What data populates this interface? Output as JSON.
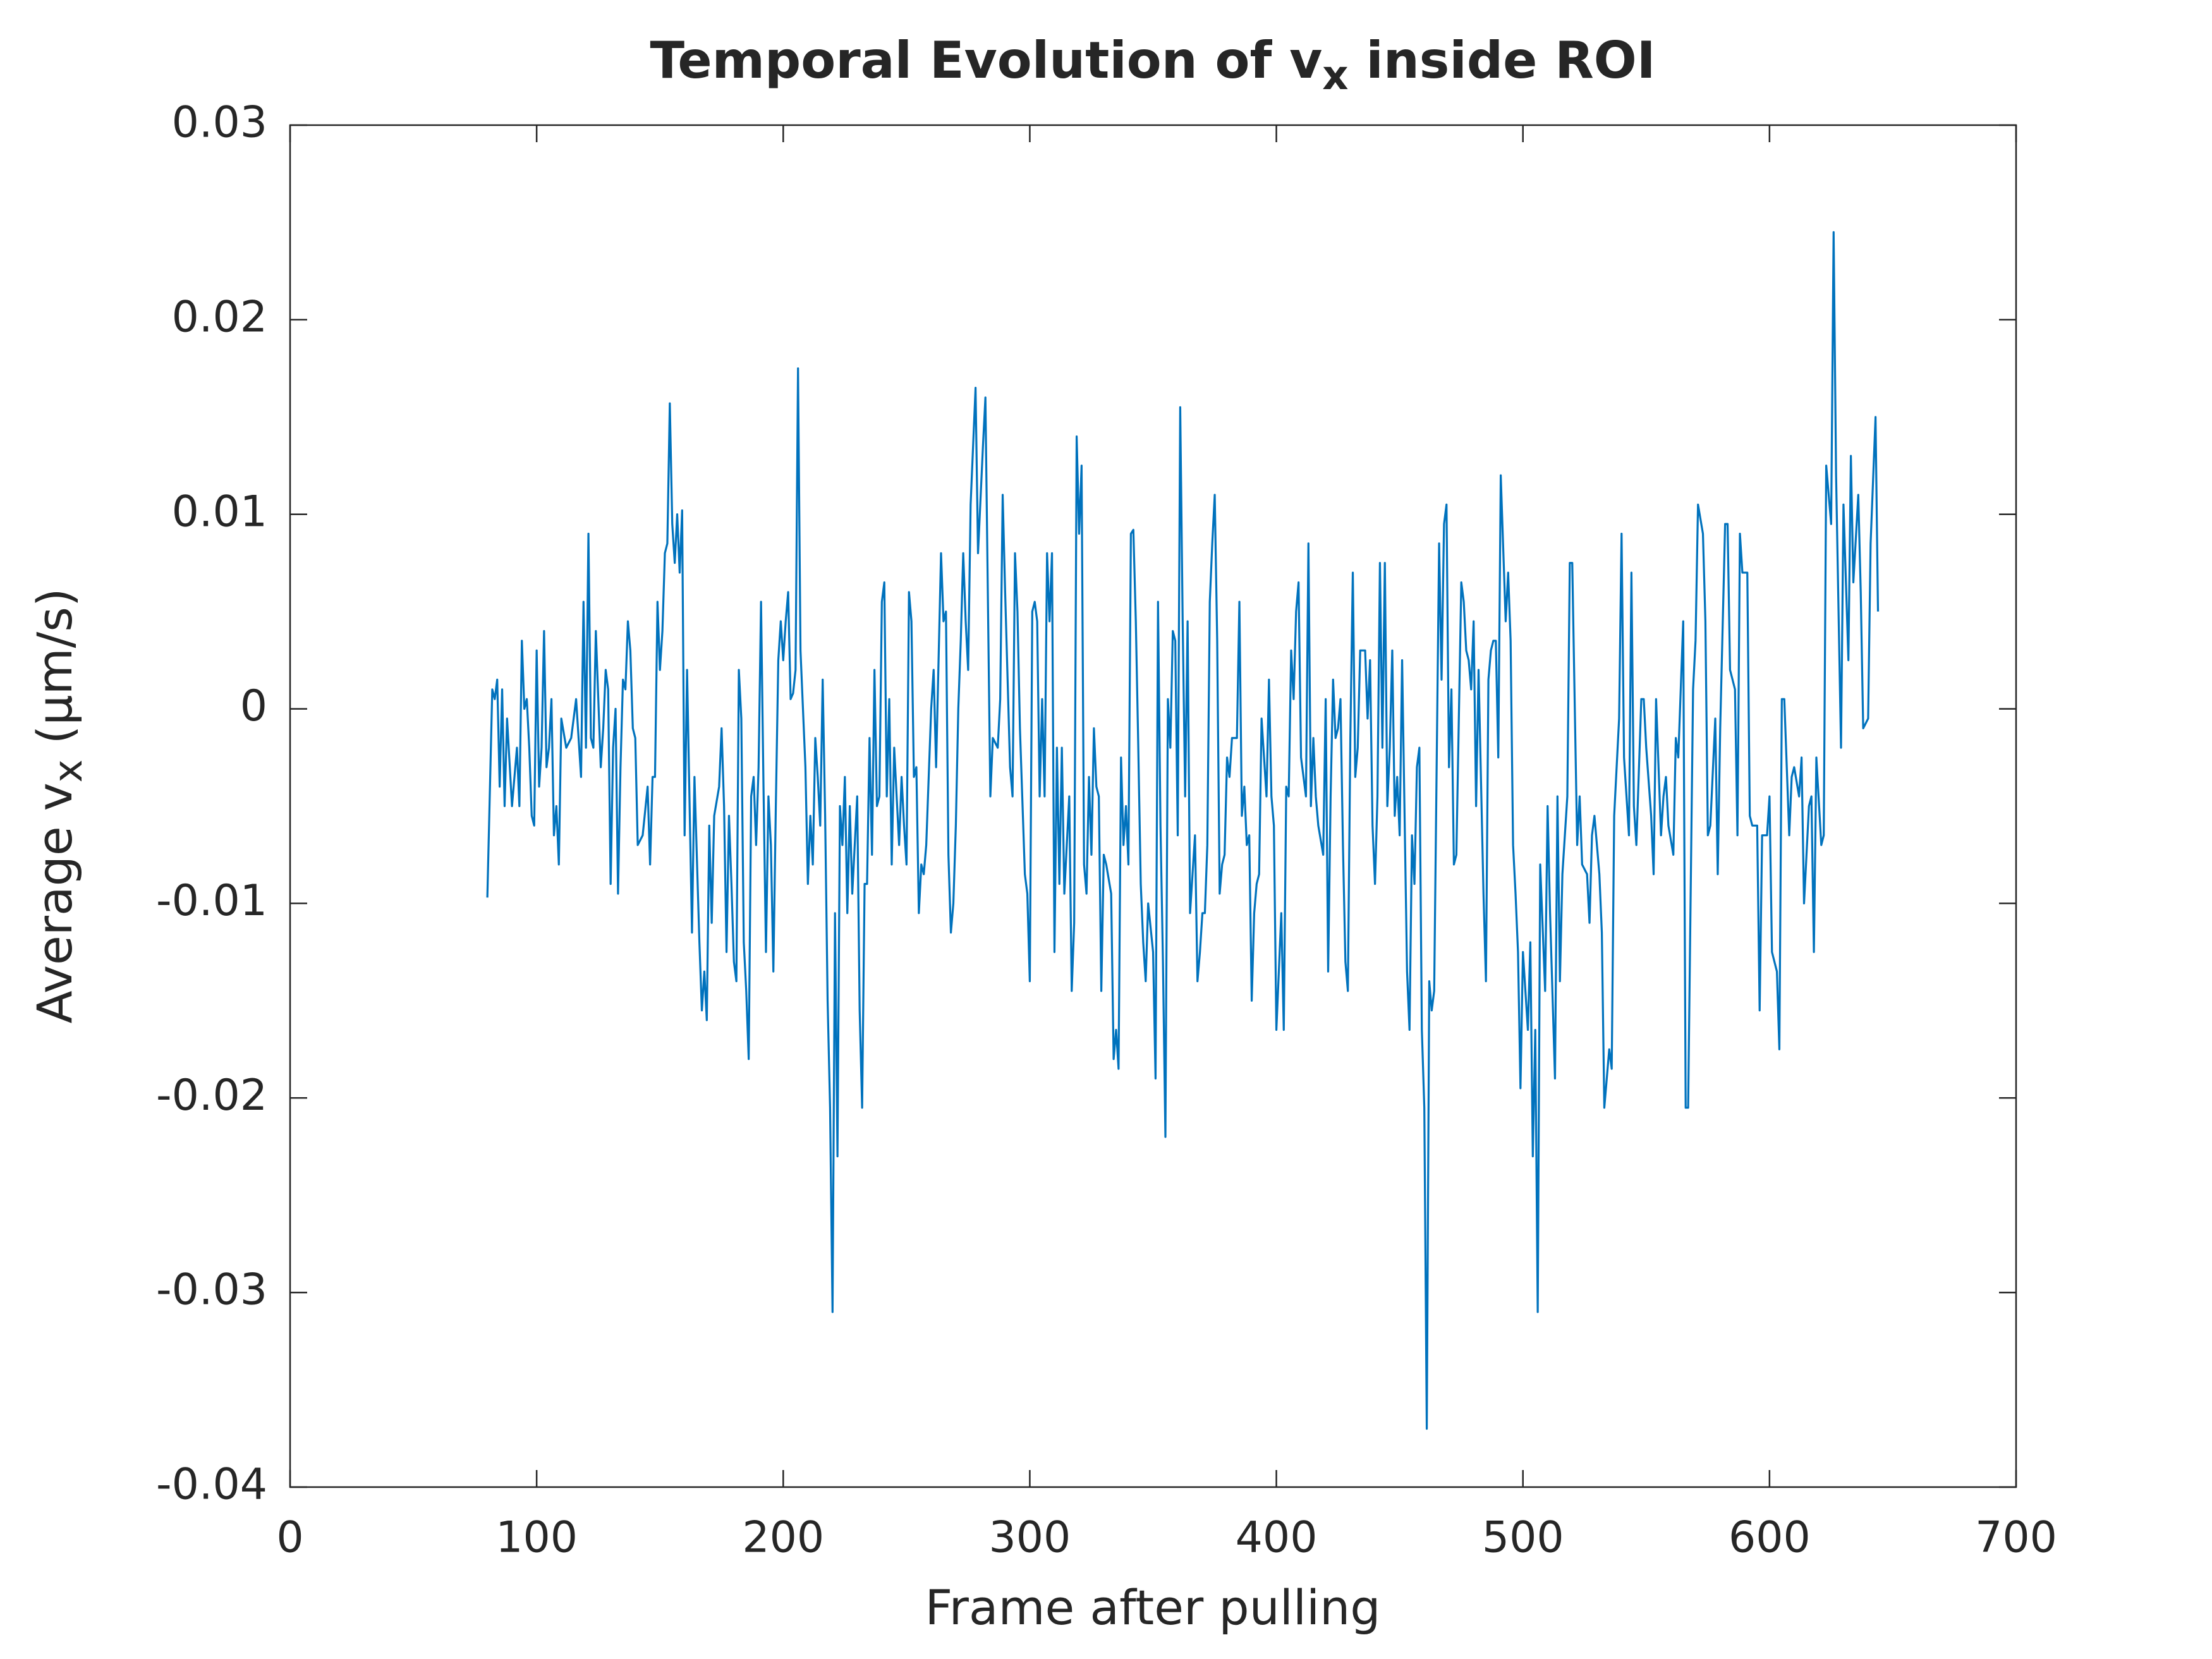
{
  "chart_data": {
    "type": "line",
    "title_parts": [
      "Temporal Evolution of v",
      "x",
      " inside ROI"
    ],
    "xlabel": "Frame after pulling",
    "ylabel_parts": [
      "Average v",
      "x",
      " (μm/s)"
    ],
    "xlim": [
      0,
      700
    ],
    "xticks": [
      0,
      100,
      200,
      300,
      400,
      500,
      600,
      700
    ],
    "ylim": [
      -0.04,
      0.03
    ],
    "yticks": [
      -0.04,
      -0.03,
      -0.02,
      -0.01,
      0,
      0.01,
      0.02,
      0.03
    ],
    "grid": false,
    "series": [
      {
        "color": "#0072bd",
        "x": [
          80,
          82,
          83,
          84,
          85,
          86,
          87,
          88,
          90,
          92,
          93,
          94,
          95,
          96,
          97,
          98,
          99,
          100,
          101,
          102,
          103,
          104,
          105,
          106,
          107,
          108,
          109,
          110,
          112,
          114,
          116,
          118,
          119,
          120,
          121,
          122,
          123,
          124,
          126,
          127,
          128,
          129,
          130,
          131,
          132,
          133,
          134,
          135,
          136,
          137,
          138,
          139,
          140,
          141,
          143,
          145,
          146,
          147,
          148,
          149,
          150,
          151,
          152,
          153,
          154,
          155,
          156,
          157,
          158,
          159,
          160,
          161,
          163,
          164,
          166,
          167,
          168,
          169,
          170,
          171,
          172,
          174,
          175,
          176,
          177,
          178,
          179,
          180,
          181,
          182,
          183,
          184,
          185,
          186,
          187,
          188,
          189,
          190,
          191,
          192,
          193,
          194,
          195,
          196,
          197,
          198,
          199,
          200,
          201,
          202,
          203,
          204,
          205,
          206,
          207,
          208,
          209,
          210,
          211,
          212,
          213,
          214,
          215,
          216,
          217,
          218,
          219,
          220,
          221,
          222,
          223,
          224,
          225,
          226,
          227,
          228,
          230,
          231,
          232,
          233,
          234,
          235,
          236,
          237,
          238,
          239,
          240,
          241,
          242,
          243,
          244,
          245,
          247,
          248,
          249,
          250,
          251,
          252,
          253,
          254,
          255,
          256,
          257,
          258,
          259,
          260,
          261,
          262,
          264,
          265,
          266,
          267,
          268,
          269,
          270,
          271,
          272,
          273,
          274,
          275,
          276,
          278,
          279,
          281,
          282,
          284,
          285,
          287,
          288,
          289,
          290,
          291,
          292,
          293,
          294,
          295,
          296,
          298,
          299,
          300,
          301,
          302,
          303,
          304,
          305,
          306,
          307,
          308,
          309,
          310,
          311,
          312,
          313,
          314,
          316,
          317,
          318,
          319,
          320,
          321,
          322,
          323,
          324,
          325,
          326,
          327,
          328,
          329,
          330,
          331,
          333,
          334,
          335,
          336,
          337,
          338,
          339,
          340,
          341,
          342,
          343,
          344,
          345,
          346,
          347,
          348,
          350,
          351,
          352,
          353,
          354,
          355,
          356,
          357,
          358,
          359,
          360,
          361,
          362,
          363,
          364,
          365,
          367,
          368,
          369,
          370,
          371,
          372,
          373,
          374,
          375,
          376,
          377,
          378,
          379,
          380,
          381,
          382,
          384,
          385,
          386,
          387,
          388,
          389,
          390,
          391,
          392,
          393,
          394,
          395,
          396,
          397,
          398,
          399,
          400,
          402,
          403,
          404,
          405,
          406,
          407,
          408,
          409,
          410,
          411,
          412,
          413,
          414,
          415,
          416,
          417,
          419,
          420,
          421,
          422,
          423,
          424,
          425,
          426,
          427,
          428,
          429,
          430,
          431,
          432,
          433,
          434,
          436,
          437,
          438,
          439,
          440,
          441,
          442,
          443,
          444,
          445,
          446,
          447,
          448,
          449,
          450,
          451,
          453,
          454,
          455,
          456,
          457,
          458,
          459,
          460,
          461,
          462,
          463,
          464,
          466,
          467,
          468,
          469,
          470,
          471,
          472,
          473,
          475,
          476,
          477,
          478,
          479,
          480,
          481,
          482,
          484,
          485,
          486,
          487,
          488,
          489,
          490,
          491,
          493,
          494,
          495,
          496,
          497,
          498,
          499,
          500,
          502,
          503,
          504,
          505,
          506,
          507,
          509,
          510,
          511,
          513,
          514,
          515,
          516,
          518,
          519,
          520,
          522,
          523,
          524,
          526,
          527,
          528,
          529,
          531,
          532,
          533,
          535,
          536,
          537,
          539,
          540,
          541,
          543,
          544,
          545,
          546,
          548,
          549,
          550,
          552,
          553,
          554,
          556,
          557,
          558,
          559,
          561,
          562,
          563,
          565,
          566,
          567,
          569,
          570,
          571,
          573,
          574,
          575,
          576,
          578,
          579,
          580,
          582,
          583,
          584,
          586,
          587,
          588,
          589,
          591,
          592,
          593,
          595,
          596,
          597,
          599,
          600,
          601,
          603,
          604,
          605,
          606,
          608,
          609,
          610,
          612,
          613,
          614,
          616,
          617,
          618,
          619,
          621,
          622,
          623,
          625,
          626,
          627,
          629,
          630,
          632,
          633,
          634,
          636,
          637,
          638,
          640,
          641,
          643,
          644
        ],
        "values": [
          -0.0097,
          0.001,
          0.0005,
          0.0015,
          -0.004,
          0.001,
          -0.005,
          -0.0005,
          -0.005,
          -0.002,
          -0.005,
          0.0035,
          0,
          0.0005,
          -0.002,
          -0.0055,
          -0.006,
          0.003,
          -0.004,
          -0.002,
          0.004,
          -0.003,
          -0.002,
          0.0005,
          -0.0065,
          -0.005,
          -0.008,
          -0.0005,
          -0.002,
          -0.0015,
          0.0005,
          -0.0035,
          0.0055,
          -0.002,
          0.009,
          -0.0015,
          -0.002,
          0.004,
          -0.003,
          -0.001,
          0.002,
          0.001,
          -0.009,
          -0.002,
          0,
          -0.0095,
          -0.003,
          0.0015,
          0.001,
          0.0045,
          0.003,
          -0.001,
          -0.0015,
          -0.007,
          -0.0065,
          -0.004,
          -0.008,
          -0.0035,
          -0.0035,
          0.0055,
          0.002,
          0.004,
          0.008,
          0.0085,
          0.0157,
          0.0095,
          0.0075,
          0.01,
          0.007,
          0.0102,
          -0.0065,
          0.002,
          -0.0115,
          -0.0035,
          -0.012,
          -0.0155,
          -0.0135,
          -0.016,
          -0.006,
          -0.011,
          -0.0055,
          -0.004,
          -0.001,
          -0.005,
          -0.0125,
          -0.0055,
          -0.009,
          -0.013,
          -0.014,
          0.002,
          -0.0005,
          -0.012,
          -0.0145,
          -0.018,
          -0.0045,
          -0.0035,
          -0.007,
          -0.003,
          0.0055,
          -0.004,
          -0.0125,
          -0.0045,
          -0.007,
          -0.0135,
          -0.005,
          0.0025,
          0.0045,
          0.0025,
          0.0045,
          0.006,
          0.0005,
          0.0008,
          0.002,
          0.0175,
          0.003,
          0,
          -0.003,
          -0.009,
          -0.0055,
          -0.008,
          -0.0015,
          -0.0035,
          -0.006,
          0.0015,
          -0.0055,
          -0.015,
          -0.0205,
          -0.031,
          -0.0105,
          -0.023,
          -0.005,
          -0.007,
          -0.0035,
          -0.0105,
          -0.005,
          -0.0095,
          -0.0045,
          -0.0155,
          -0.0205,
          -0.009,
          -0.009,
          -0.0015,
          -0.0075,
          0.002,
          -0.005,
          -0.0045,
          0.0055,
          0.0065,
          -0.0045,
          0.0005,
          -0.008,
          -0.002,
          -0.007,
          -0.0035,
          -0.006,
          -0.008,
          0.006,
          0.0045,
          -0.0035,
          -0.003,
          -0.0105,
          -0.008,
          -0.0085,
          -0.007,
          -0.0035,
          0,
          0.002,
          -0.003,
          0.008,
          0.0045,
          0.005,
          -0.0075,
          -0.0115,
          -0.01,
          -0.006,
          0,
          0.0035,
          0.008,
          0.0045,
          0.002,
          0.0105,
          0.0165,
          0.008,
          0.0135,
          0.016,
          -0.0045,
          -0.0015,
          -0.002,
          0.0005,
          0.011,
          0.006,
          0.0015,
          -0.003,
          -0.0045,
          0.008,
          0.005,
          -0.001,
          -0.0085,
          -0.0095,
          -0.014,
          0.005,
          0.0055,
          0.0045,
          -0.0045,
          0.0005,
          -0.0045,
          0.008,
          0.0045,
          0.008,
          -0.0125,
          -0.002,
          -0.009,
          -0.002,
          -0.0095,
          -0.0045,
          -0.0145,
          -0.011,
          0.014,
          0.009,
          0.0125,
          -0.008,
          -0.0095,
          -0.0035,
          -0.0075,
          -0.001,
          -0.004,
          -0.0045,
          -0.0145,
          -0.0075,
          -0.008,
          -0.0095,
          -0.018,
          -0.0165,
          -0.0185,
          -0.0025,
          -0.007,
          -0.005,
          -0.008,
          0.009,
          0.0092,
          0.0045,
          -0.002,
          -0.009,
          -0.012,
          -0.014,
          -0.01,
          -0.0125,
          -0.019,
          0.0055,
          -0.006,
          -0.013,
          -0.022,
          0.0005,
          -0.002,
          0.004,
          0.0035,
          -0.0065,
          0.0155,
          0.0045,
          -0.0045,
          0.0045,
          -0.0105,
          -0.0065,
          -0.014,
          -0.0125,
          -0.0105,
          -0.0105,
          -0.007,
          0.0055,
          0.0085,
          0.011,
          0.0035,
          -0.0095,
          -0.008,
          -0.0075,
          -0.0025,
          -0.0035,
          -0.0015,
          -0.0015,
          0.0055,
          -0.0055,
          -0.004,
          -0.007,
          -0.0065,
          -0.015,
          -0.0105,
          -0.009,
          -0.0085,
          -0.0005,
          -0.0025,
          -0.0045,
          0.0015,
          -0.0045,
          -0.006,
          -0.0165,
          -0.0105,
          -0.0165,
          -0.004,
          -0.0045,
          0.003,
          0.0005,
          0.005,
          0.0065,
          -0.0025,
          -0.0035,
          -0.0045,
          0.0085,
          -0.005,
          -0.0015,
          -0.0045,
          -0.006,
          -0.0075,
          0.0005,
          -0.0135,
          -0.0045,
          0.0015,
          -0.0015,
          -0.001,
          0.0005,
          -0.007,
          -0.013,
          -0.0145,
          -0.0015,
          0.007,
          -0.0035,
          -0.002,
          0.003,
          0.003,
          -0.0005,
          0.0025,
          -0.006,
          -0.009,
          -0.0045,
          0.0075,
          -0.002,
          0.0075,
          -0.005,
          -0.002,
          0.003,
          -0.0055,
          -0.0035,
          -0.0065,
          0.0025,
          -0.0135,
          -0.0165,
          -0.0065,
          -0.009,
          -0.003,
          -0.002,
          -0.0165,
          -0.0205,
          -0.037,
          -0.014,
          -0.0155,
          -0.0145,
          0.0085,
          0.0015,
          0.0095,
          0.0105,
          -0.003,
          0.001,
          -0.008,
          -0.0075,
          0.0065,
          0.0055,
          0.003,
          0.0025,
          0.001,
          0.0045,
          -0.005,
          0.002,
          -0.0095,
          -0.014,
          0.0015,
          0.003,
          0.0035,
          0.0035,
          -0.0025,
          0.012,
          0.0045,
          0.007,
          0.0035,
          -0.007,
          -0.0095,
          -0.0125,
          -0.0195,
          -0.0125,
          -0.0165,
          -0.012,
          -0.023,
          -0.0165,
          -0.031,
          -0.008,
          -0.0145,
          -0.005,
          -0.0105,
          -0.019,
          -0.0045,
          -0.014,
          -0.0085,
          -0.0045,
          0.0075,
          0.0075,
          -0.007,
          -0.0045,
          -0.008,
          -0.0085,
          -0.011,
          -0.0065,
          -0.0055,
          -0.0085,
          -0.0115,
          -0.0205,
          -0.0175,
          -0.0185,
          -0.0055,
          -0.0005,
          0.009,
          -0.0025,
          -0.0065,
          0.007,
          -0.005,
          -0.007,
          0.0005,
          0.0005,
          -0.002,
          -0.0055,
          -0.0085,
          0.0005,
          -0.0065,
          -0.0045,
          -0.0035,
          -0.006,
          -0.0075,
          -0.0015,
          -0.0025,
          0.0045,
          -0.0205,
          -0.0205,
          0.001,
          0.0035,
          0.0105,
          0.009,
          0.0045,
          -0.0065,
          -0.006,
          -0.0005,
          -0.0085,
          -0.001,
          0.0095,
          0.0095,
          0.002,
          0.001,
          -0.0065,
          0.009,
          0.007,
          0.007,
          -0.0055,
          -0.006,
          -0.006,
          -0.0155,
          -0.0065,
          -0.0065,
          -0.0045,
          -0.0125,
          -0.0135,
          -0.0175,
          0.0005,
          0.0005,
          -0.0065,
          -0.0035,
          -0.003,
          -0.0045,
          -0.0025,
          -0.01,
          -0.005,
          -0.0045,
          -0.0125,
          -0.0025,
          -0.007,
          -0.0065,
          0.0125,
          0.0095,
          0.0245,
          0.012,
          -0.002,
          0.0105,
          0.0025,
          0.013,
          0.0065,
          0.011,
          0.006,
          -0.001,
          -0.0005,
          0.0085,
          0.015,
          0.005
        ]
      }
    ]
  }
}
